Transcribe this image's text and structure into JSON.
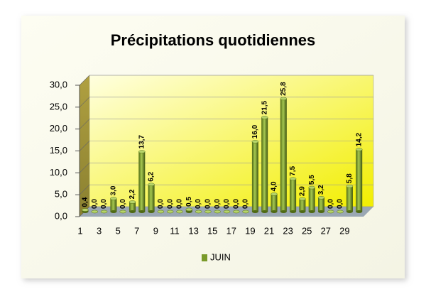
{
  "chart_data": {
    "type": "bar",
    "title": "Précipitations quotidiennes",
    "categories": [
      "1",
      null,
      "3",
      null,
      "5",
      null,
      "7",
      null,
      "9",
      null,
      "11",
      null,
      "13",
      null,
      "15",
      null,
      "17",
      null,
      "19",
      null,
      "21",
      null,
      "23",
      null,
      "25",
      null,
      "27",
      null,
      "29",
      null
    ],
    "series": [
      {
        "name": "JUIN",
        "color": "#7a9a2a",
        "values": [
          0.4,
          0,
          0,
          3.0,
          0,
          2.2,
          13.7,
          6.2,
          0,
          0,
          0,
          0.5,
          0,
          0,
          0,
          0,
          0,
          0,
          16.0,
          21.5,
          4.0,
          25.8,
          7.5,
          2.9,
          5.5,
          3.2,
          0,
          0,
          5.8,
          14.2
        ],
        "value_labels": [
          "0,4",
          "0,0",
          "0,0",
          "3,0",
          "0,0",
          "2,2",
          "13,7",
          "6,2",
          "0,0",
          "0,0",
          "0,0",
          "0,5",
          "0,0",
          "0,0",
          "0,0",
          "0,0",
          "0,0",
          "0,0",
          "16,0",
          "21,5",
          "4,0",
          "25,8",
          "7,5",
          "2,9",
          "5,5",
          "3,2",
          "0,0",
          "0,0",
          "5,8",
          "14,2"
        ]
      }
    ],
    "ylim": [
      0,
      30
    ],
    "yticks": [
      {
        "value": 0,
        "label": "0,0"
      },
      {
        "value": 5,
        "label": "5,0"
      },
      {
        "value": 10,
        "label": "10,0"
      },
      {
        "value": 15,
        "label": "15,0"
      },
      {
        "value": 20,
        "label": "20,0"
      },
      {
        "value": 25,
        "label": "25,0"
      },
      {
        "value": 30,
        "label": "30,0"
      }
    ],
    "grid": true,
    "legend": "bottom"
  }
}
